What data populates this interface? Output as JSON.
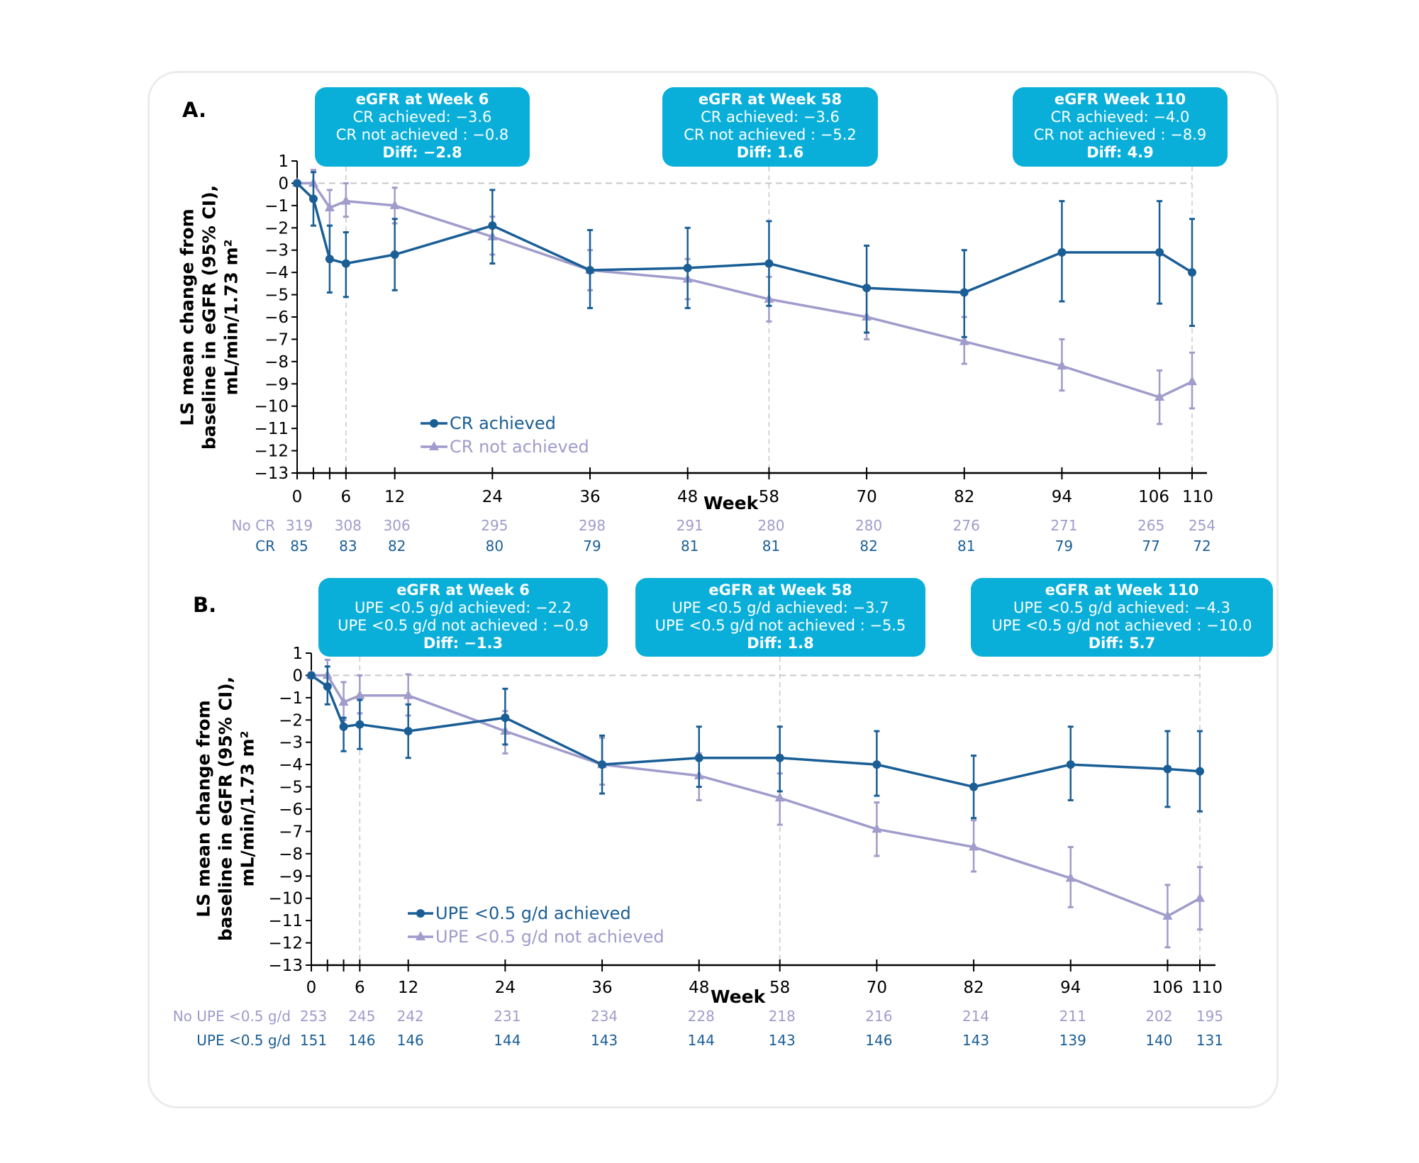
{
  "colors": {
    "achieved": "#1a5e96",
    "not_achieved": "#a09ccb",
    "callout": "#0aafd9",
    "reference": "#c8c8c8"
  },
  "chart_data": [
    {
      "type": "line",
      "panel_label": "A.",
      "xlabel": "Week",
      "ylabel": "LS mean change from baseline in eGFR (95% CI), mL/min/1.73 m²",
      "ylabel_lines": [
        "LS mean change from",
        "baseline in eGFR (95% CI),",
        "mL/min/1.73 m²"
      ],
      "ylim": [
        -13,
        1
      ],
      "yticks": [
        1,
        0,
        -1,
        -2,
        -3,
        -4,
        -5,
        -6,
        -7,
        -8,
        -9,
        -10,
        -11,
        -12,
        -13
      ],
      "xlim": [
        0,
        110
      ],
      "x": [
        0,
        2,
        4,
        6,
        12,
        24,
        36,
        48,
        58,
        70,
        82,
        94,
        106,
        110
      ],
      "xtick_labels": [
        0,
        6,
        12,
        24,
        36,
        48,
        58,
        70,
        82,
        94,
        106,
        110
      ],
      "reference_weeks": [
        6,
        58,
        110
      ],
      "legend_placement": "lower-left",
      "series": [
        {
          "name": "CR achieved",
          "marker": "circle",
          "values": [
            0,
            -0.7,
            -3.4,
            -3.6,
            -3.2,
            -1.9,
            -3.9,
            -3.8,
            -3.6,
            -4.7,
            -4.9,
            -3.1,
            -3.1,
            -4.0
          ],
          "ci_low": [
            0,
            -1.9,
            -4.9,
            -5.1,
            -4.8,
            -3.6,
            -5.6,
            -5.6,
            -5.5,
            -6.7,
            -6.9,
            -5.3,
            -5.4,
            -6.4
          ],
          "ci_high": [
            0,
            0.5,
            -1.9,
            -2.2,
            -1.6,
            -0.3,
            -2.1,
            -2.0,
            -1.7,
            -2.8,
            -3.0,
            -0.8,
            -0.8,
            -1.6
          ]
        },
        {
          "name": "CR not achieved",
          "marker": "triangle",
          "values": [
            0,
            0,
            -1.1,
            -0.8,
            -1.0,
            -2.4,
            -3.9,
            -4.3,
            -5.2,
            -6.0,
            -7.1,
            -8.2,
            -9.6,
            -8.9
          ],
          "ci_low": [
            0,
            -0.6,
            -1.9,
            -1.5,
            -1.8,
            -3.2,
            -4.8,
            -5.2,
            -6.2,
            -7.0,
            -8.1,
            -9.3,
            -10.8,
            -10.1
          ],
          "ci_high": [
            0,
            0.6,
            -0.3,
            0,
            -0.2,
            -1.5,
            -3.0,
            -3.4,
            -4.2,
            -4.8,
            -6.0,
            -7.0,
            -8.4,
            -7.6
          ]
        }
      ],
      "at_risk": {
        "weeks": [
          0,
          6,
          12,
          24,
          36,
          48,
          58,
          70,
          82,
          94,
          106,
          110
        ],
        "rows": [
          {
            "label": "No CR",
            "values": [
              319,
              308,
              306,
              295,
              298,
              291,
              280,
              280,
              276,
              271,
              265,
              254
            ]
          },
          {
            "label": "CR",
            "values": [
              85,
              83,
              82,
              80,
              79,
              81,
              81,
              82,
              81,
              79,
              77,
              72
            ]
          }
        ]
      },
      "callouts": [
        {
          "title": "eGFR at Week 6",
          "line1": "CR achieved: −3.6",
          "line2": "CR not achieved : −0.8",
          "diff": "Diff: −2.8"
        },
        {
          "title": "eGFR at Week 58",
          "line1": "CR achieved: −3.6",
          "line2": "CR not achieved : −5.2",
          "diff": "Diff: 1.6"
        },
        {
          "title": "eGFR Week 110",
          "line1": "CR achieved: −4.0",
          "line2": "CR not achieved : −8.9",
          "diff": "Diff: 4.9"
        }
      ]
    },
    {
      "type": "line",
      "panel_label": "B.",
      "xlabel": "Week",
      "ylabel": "LS mean change from baseline in eGFR (95% CI), mL/min/1.73 m²",
      "ylabel_lines": [
        "LS mean change from",
        "baseline in eGFR (95% CI),",
        "mL/min/1.73 m²"
      ],
      "ylim": [
        -13,
        1
      ],
      "yticks": [
        1,
        0,
        -1,
        -2,
        -3,
        -4,
        -5,
        -6,
        -7,
        -8,
        -9,
        -10,
        -11,
        -12,
        -13
      ],
      "xlim": [
        0,
        110
      ],
      "x": [
        0,
        2,
        4,
        6,
        12,
        24,
        36,
        48,
        58,
        70,
        82,
        94,
        106,
        110
      ],
      "xtick_labels": [
        0,
        6,
        12,
        24,
        36,
        48,
        58,
        70,
        82,
        94,
        106,
        110
      ],
      "reference_weeks": [
        6,
        58,
        110
      ],
      "legend_placement": "lower-left",
      "series": [
        {
          "name": "UPE <0.5 g/d achieved",
          "marker": "circle",
          "values": [
            0,
            -0.5,
            -2.3,
            -2.2,
            -2.5,
            -1.9,
            -4.0,
            -3.7,
            -3.7,
            -4.0,
            -5.0,
            -4.0,
            -4.2,
            -4.3
          ],
          "ci_low": [
            0,
            -1.3,
            -3.4,
            -3.3,
            -3.7,
            -3.1,
            -5.3,
            -5.0,
            -5.2,
            -5.4,
            -6.4,
            -5.6,
            -5.9,
            -6.1
          ],
          "ci_high": [
            0,
            0.4,
            -1.9,
            -1.1,
            -1.3,
            -0.6,
            -2.7,
            -2.3,
            -2.3,
            -2.5,
            -3.6,
            -2.3,
            -2.5,
            -2.5
          ]
        },
        {
          "name": "UPE <0.5 g/d not achieved",
          "marker": "triangle",
          "values": [
            0,
            0,
            -1.2,
            -0.9,
            -0.9,
            -2.5,
            -4.0,
            -4.5,
            -5.5,
            -6.9,
            -7.7,
            -9.1,
            -10.8,
            -10.0
          ],
          "ci_low": [
            0,
            -0.6,
            -2.0,
            -1.7,
            -1.8,
            -3.5,
            -4.9,
            -5.6,
            -6.7,
            -8.1,
            -8.8,
            -10.4,
            -12.2,
            -11.4
          ],
          "ci_high": [
            0,
            0.7,
            -0.3,
            0,
            0.05,
            -1.6,
            -2.8,
            -3.5,
            -4.4,
            -5.7,
            -6.5,
            -7.7,
            -9.4,
            -8.6
          ]
        }
      ],
      "at_risk": {
        "weeks": [
          0,
          6,
          12,
          24,
          36,
          48,
          58,
          70,
          82,
          94,
          106,
          110
        ],
        "rows": [
          {
            "label": "No UPE <0.5 g/d",
            "values": [
              253,
              245,
              242,
              231,
              234,
              228,
              218,
              216,
              214,
              211,
              202,
              195
            ]
          },
          {
            "label": "UPE <0.5 g/d",
            "values": [
              151,
              146,
              146,
              144,
              143,
              144,
              143,
              146,
              143,
              139,
              140,
              131
            ]
          }
        ]
      },
      "callouts": [
        {
          "title": "eGFR at Week 6",
          "line1": "UPE <0.5 g/d achieved: −2.2",
          "line2": "UPE <0.5 g/d not achieved : −0.9",
          "diff": "Diff: −1.3"
        },
        {
          "title": "eGFR at Week 58",
          "line1": "UPE <0.5 g/d achieved: −3.7",
          "line2": "UPE <0.5 g/d not achieved : −5.5",
          "diff": "Diff: 1.8"
        },
        {
          "title": "eGFR at Week 110",
          "line1": "UPE <0.5 g/d achieved: −4.3",
          "line2": "UPE <0.5 g/d not achieved : −10.0",
          "diff": "Diff: 5.7"
        }
      ]
    }
  ]
}
